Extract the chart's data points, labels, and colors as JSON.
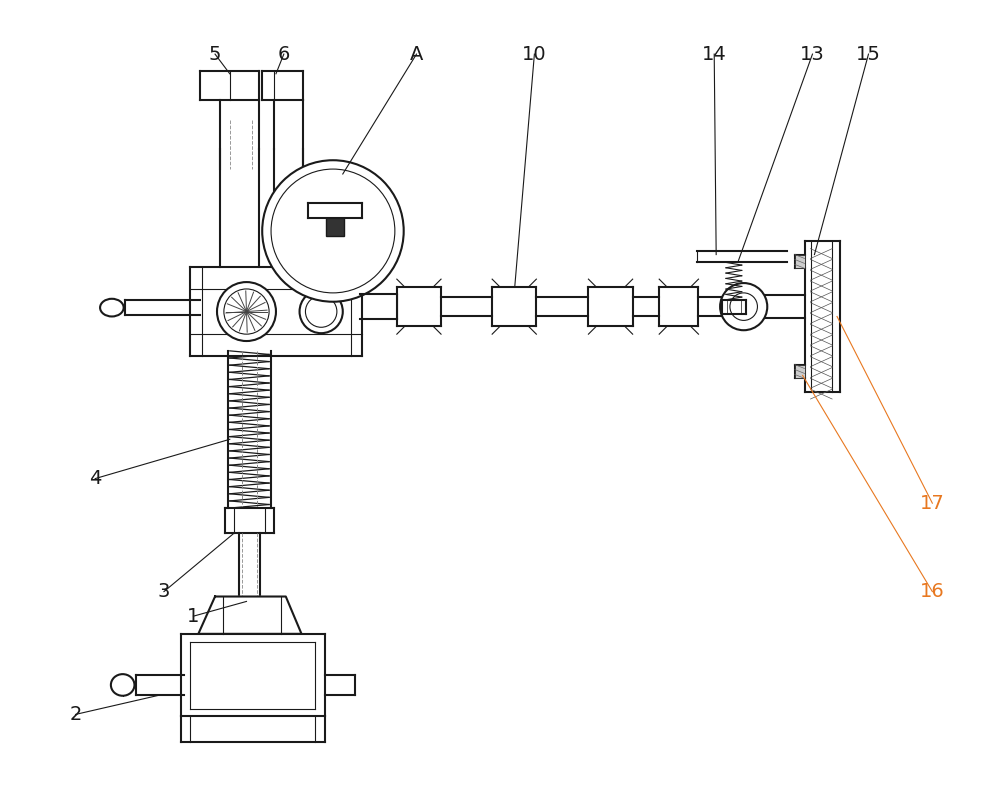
{
  "bg_color": "#ffffff",
  "line_color": "#1a1a1a",
  "figsize": [
    10.0,
    7.99
  ],
  "dpi": 100,
  "annotations": [
    [
      "5",
      210,
      48,
      225,
      68,
      "#1a1a1a"
    ],
    [
      "6",
      280,
      48,
      272,
      68,
      "#1a1a1a"
    ],
    [
      "A",
      415,
      48,
      340,
      170,
      "#1a1a1a"
    ],
    [
      "10",
      535,
      48,
      515,
      285,
      "#1a1a1a"
    ],
    [
      "14",
      718,
      48,
      720,
      252,
      "#1a1a1a"
    ],
    [
      "13",
      818,
      48,
      742,
      260,
      "#1a1a1a"
    ],
    [
      "15",
      875,
      48,
      820,
      252,
      "#1a1a1a"
    ],
    [
      "16",
      940,
      595,
      808,
      375,
      "#e87820"
    ],
    [
      "17",
      940,
      505,
      843,
      315,
      "#e87820"
    ],
    [
      "4",
      88,
      480,
      225,
      440,
      "#1a1a1a"
    ],
    [
      "3",
      158,
      595,
      230,
      535,
      "#1a1a1a"
    ],
    [
      "1",
      188,
      620,
      242,
      605,
      "#1a1a1a"
    ],
    [
      "2",
      68,
      720,
      155,
      700,
      "#1a1a1a"
    ]
  ]
}
